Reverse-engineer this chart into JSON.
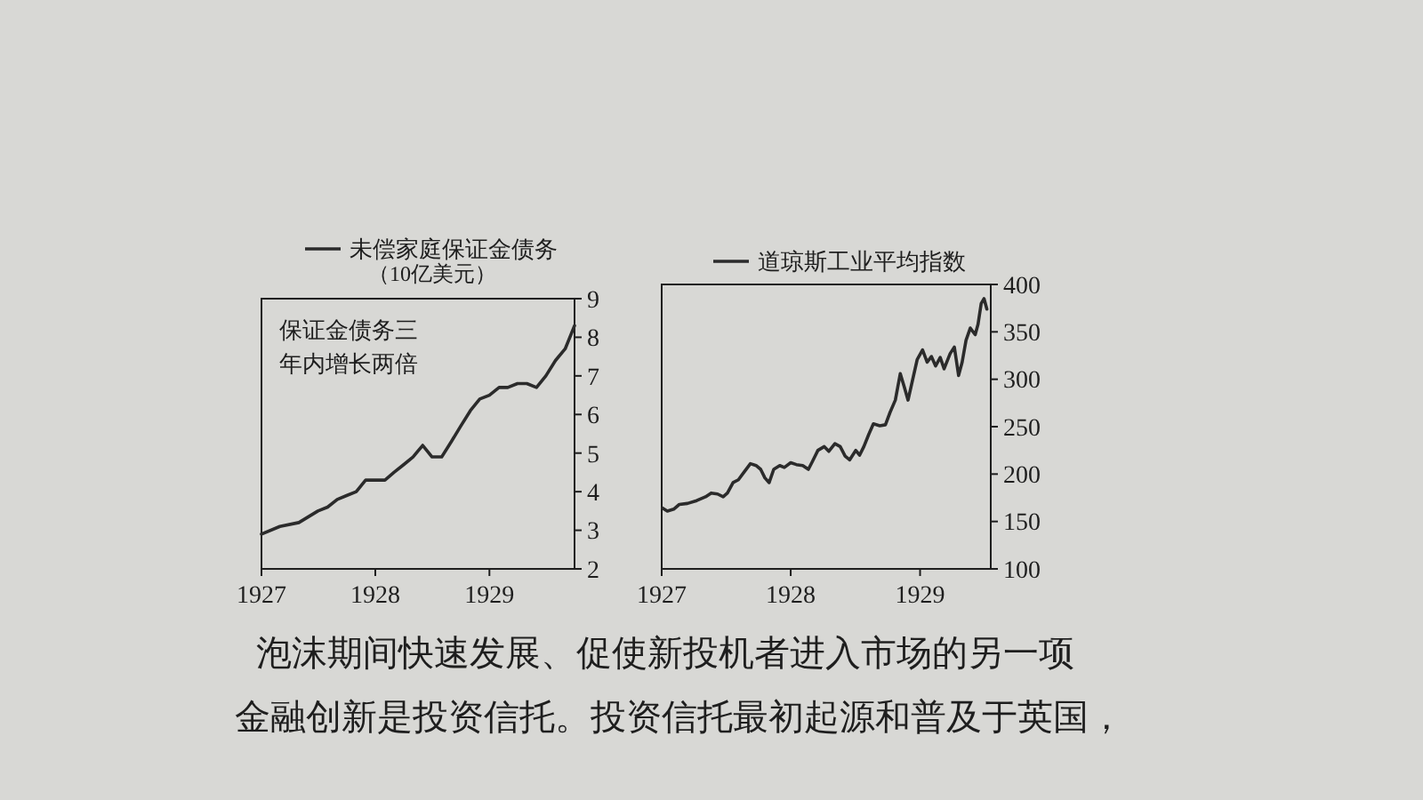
{
  "chart_data": [
    {
      "type": "line",
      "x": [
        "1927-01",
        "1927-03",
        "1927-05",
        "1927-07",
        "1927-08",
        "1927-09",
        "1927-10",
        "1927-11",
        "1927-12",
        "1928-01",
        "1928-02",
        "1928-03",
        "1928-04",
        "1928-05",
        "1928-06",
        "1928-07",
        "1928-08",
        "1928-09",
        "1928-10",
        "1928-11",
        "1928-12",
        "1929-01",
        "1929-02",
        "1929-03",
        "1929-04",
        "1929-05",
        "1929-06",
        "1929-07",
        "1929-08",
        "1929-09",
        "1929-10"
      ],
      "series": [
        {
          "name": "未偿家庭保证金债务",
          "color": "#2b2b2b",
          "values": [
            2.9,
            3.1,
            3.2,
            3.5,
            3.6,
            3.8,
            3.9,
            4.0,
            4.3,
            4.3,
            4.3,
            4.5,
            4.7,
            4.9,
            5.2,
            4.9,
            4.9,
            5.3,
            5.7,
            6.1,
            6.4,
            6.5,
            6.7,
            6.7,
            6.8,
            6.8,
            6.7,
            7.0,
            7.4,
            7.7,
            8.3
          ]
        }
      ],
      "ylabel": "（10亿美元）",
      "xlim": [
        "1927-01",
        "1929-10"
      ],
      "xticks": [
        "1927",
        "1928",
        "1929"
      ],
      "ylim": [
        2,
        9
      ],
      "yticks": [
        2,
        3,
        4,
        5,
        6,
        7,
        8,
        9
      ],
      "legend": "top",
      "annotations": [
        "保证金债务三年内增长两倍"
      ]
    },
    {
      "type": "line",
      "x": [
        "1927-01-04",
        "1927-01-17",
        "1927-02-04",
        "1927-02-20",
        "1927-03-15",
        "1927-04-10",
        "1927-05-05",
        "1927-05-21",
        "1927-06-08",
        "1927-06-24",
        "1927-07-06",
        "1927-07-22",
        "1927-08-06",
        "1927-08-22",
        "1927-09-09",
        "1927-09-25",
        "1927-10-08",
        "1927-10-20",
        "1927-11-01",
        "1927-11-14",
        "1927-12-01",
        "1927-12-14",
        "1928-01-01",
        "1928-01-17",
        "1928-02-04",
        "1928-02-20",
        "1928-03-02",
        "1928-03-18",
        "1928-04-05",
        "1928-04-18",
        "1928-05-05",
        "1928-05-20",
        "1928-06-03",
        "1928-06-16",
        "1928-07-03",
        "1928-07-14",
        "1928-07-26",
        "1928-08-09",
        "1928-08-22",
        "1928-09-09",
        "1928-09-25",
        "1928-10-08",
        "1928-10-23",
        "1928-11-06",
        "1928-11-18",
        "1928-11-28",
        "1928-12-10",
        "1928-12-24",
        "1929-01-08",
        "1929-01-21",
        "1929-02-02",
        "1929-02-14",
        "1929-02-27",
        "1929-03-10",
        "1929-03-27",
        "1929-04-08",
        "1929-04-20",
        "1929-04-30",
        "1929-05-11",
        "1929-05-23",
        "1929-06-06",
        "1929-06-14",
        "1929-06-23",
        "1929-07-01",
        "1929-07-09"
      ],
      "series": [
        {
          "name": "道琼斯工业平均指数",
          "color": "#2b2b2b",
          "values": [
            164,
            161,
            163,
            168,
            169,
            172,
            176,
            180,
            179,
            176,
            180,
            191,
            194,
            202,
            211,
            209,
            205,
            196,
            191,
            205,
            209,
            207,
            212,
            210,
            209,
            205,
            213,
            225,
            229,
            224,
            232,
            229,
            219,
            215,
            225,
            220,
            229,
            242,
            253,
            251,
            252,
            265,
            278,
            306,
            291,
            278,
            298,
            321,
            331,
            318,
            324,
            314,
            323,
            311,
            327,
            334,
            304,
            318,
            341,
            354,
            347,
            358,
            380,
            385,
            374
          ]
        }
      ],
      "xlim": [
        "1927-01-01",
        "1929-07-20"
      ],
      "xticks": [
        "1927",
        "1928",
        "1929"
      ],
      "ylim": [
        100,
        400
      ],
      "yticks": [
        100,
        150,
        200,
        250,
        300,
        350,
        400
      ],
      "legend": "top"
    },
    {
      "type": "other",
      "annotations": [
        "泡沫期间快速发展、促使新投机者进入市场的另一项",
        "金融创新是投资信托。投资信托最初起源和普及于英国，"
      ]
    }
  ]
}
